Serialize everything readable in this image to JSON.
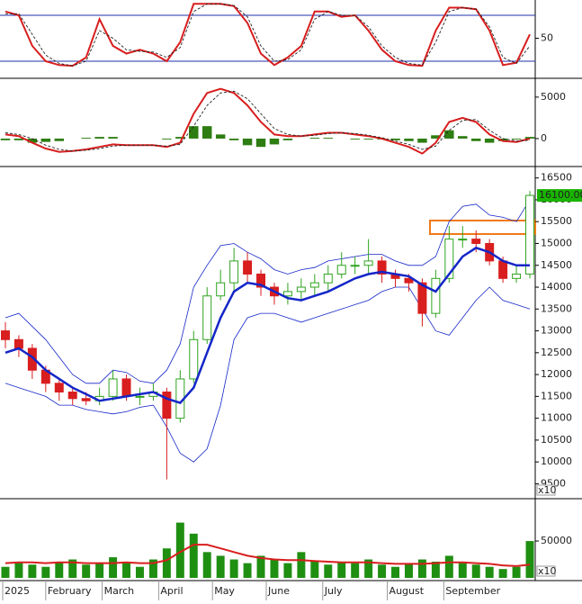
{
  "chart_data": [
    {
      "type": "stochastic",
      "x": [
        0,
        5,
        10,
        15,
        20,
        25,
        30,
        35,
        40,
        45,
        50,
        55,
        60,
        65,
        70,
        75,
        80,
        85,
        90,
        95,
        100,
        105,
        110,
        115,
        120,
        125,
        130,
        135,
        140,
        145,
        150,
        155,
        160,
        165,
        170,
        175,
        180,
        185,
        190,
        195
      ],
      "xlim": [
        -2,
        197
      ],
      "ylim": [
        0,
        100
      ],
      "yticks": [
        50
      ],
      "ref_lines": [
        80,
        20
      ],
      "ref_color": "#1f2fa8",
      "series": [
        {
          "color": "#d81e1e",
          "style": "solid",
          "values": [
            85,
            80,
            40,
            20,
            15,
            14,
            25,
            75,
            40,
            30,
            35,
            30,
            20,
            45,
            95,
            95,
            95,
            92,
            70,
            30,
            15,
            25,
            40,
            85,
            85,
            78,
            80,
            60,
            35,
            20,
            15,
            14,
            60,
            90,
            90,
            88,
            60,
            15,
            18,
            55
          ]
        },
        {
          "color": "#222222",
          "style": "dashed",
          "values": [
            82,
            82,
            55,
            28,
            17,
            14,
            20,
            60,
            50,
            35,
            33,
            32,
            25,
            38,
            85,
            95,
            95,
            93,
            78,
            40,
            20,
            22,
            35,
            75,
            85,
            80,
            80,
            65,
            40,
            25,
            17,
            15,
            45,
            85,
            90,
            88,
            65,
            25,
            17,
            40
          ]
        }
      ]
    },
    {
      "type": "macd",
      "x": [
        0,
        5,
        10,
        15,
        20,
        25,
        30,
        35,
        40,
        45,
        50,
        55,
        60,
        65,
        70,
        75,
        80,
        85,
        90,
        95,
        100,
        105,
        110,
        115,
        120,
        125,
        130,
        135,
        140,
        145,
        150,
        155,
        160,
        165,
        170,
        175,
        180,
        185,
        190,
        195
      ],
      "xlim": [
        -2,
        197
      ],
      "ylim": [
        -3150,
        7050
      ],
      "yticks": [
        0,
        5000
      ],
      "histogram": {
        "color": "#2e7d12",
        "values": [
          -200,
          -200,
          -500,
          -400,
          -300,
          0,
          100,
          200,
          200,
          0,
          0,
          0,
          -100,
          200,
          1500,
          1500,
          500,
          -200,
          -800,
          -1000,
          -700,
          -200,
          0,
          100,
          100,
          0,
          -100,
          -100,
          -100,
          -200,
          -300,
          -500,
          400,
          1000,
          300,
          -300,
          -500,
          -300,
          -100,
          200
        ]
      },
      "series": [
        {
          "color": "#d81e1e",
          "style": "solid",
          "values": [
            500,
            300,
            -500,
            -1200,
            -1600,
            -1500,
            -1300,
            -1000,
            -700,
            -800,
            -800,
            -800,
            -1000,
            -500,
            3000,
            5500,
            6000,
            5500,
            4000,
            2000,
            500,
            300,
            300,
            500,
            700,
            700,
            500,
            300,
            0,
            -500,
            -1000,
            -1800,
            -500,
            2000,
            2500,
            2000,
            500,
            -300,
            -400,
            0
          ]
        },
        {
          "color": "#222222",
          "style": "dashed",
          "values": [
            700,
            500,
            0,
            -800,
            -1300,
            -1500,
            -1400,
            -1200,
            -900,
            -800,
            -800,
            -800,
            -900,
            -700,
            1500,
            4000,
            5500,
            5700,
            4800,
            3000,
            1200,
            500,
            300,
            400,
            600,
            700,
            600,
            400,
            100,
            -300,
            -700,
            -1300,
            -900,
            1000,
            2200,
            2300,
            1000,
            0,
            -300,
            -200
          ]
        }
      ]
    },
    {
      "type": "candlestick",
      "x": [
        0,
        5,
        10,
        15,
        20,
        25,
        30,
        35,
        40,
        45,
        50,
        55,
        60,
        65,
        70,
        75,
        80,
        85,
        90,
        95,
        100,
        105,
        110,
        115,
        120,
        125,
        130,
        135,
        140,
        145,
        150,
        155,
        160,
        165,
        170,
        175,
        180,
        185,
        190,
        195
      ],
      "xlim": [
        -2,
        197
      ],
      "ylim": [
        9200,
        16720
      ],
      "yticks": [
        9500,
        10000,
        10500,
        11000,
        11500,
        12000,
        12500,
        13000,
        13500,
        14000,
        14500,
        15000,
        15500,
        16000,
        16500
      ],
      "up_color": "#2fa31f",
      "down_color": "#d81e1e",
      "open": [
        13000,
        12800,
        12600,
        12100,
        11800,
        11600,
        11450,
        11400,
        11500,
        11900,
        11500,
        11500,
        11600,
        11000,
        11900,
        12800,
        13800,
        14100,
        14600,
        14300,
        14000,
        13800,
        13900,
        14000,
        14100,
        14300,
        14500,
        14500,
        14600,
        14300,
        14200,
        14100,
        13400,
        14200,
        15100,
        15100,
        15000,
        14600,
        14200,
        14300
      ],
      "high": [
        13200,
        12900,
        12700,
        12200,
        11900,
        11700,
        11600,
        11700,
        12100,
        12000,
        11700,
        11800,
        11700,
        12100,
        13000,
        14000,
        14400,
        14900,
        14800,
        14400,
        14100,
        14100,
        14200,
        14300,
        14500,
        14800,
        14700,
        15100,
        14700,
        14400,
        14300,
        14200,
        14400,
        15400,
        15400,
        15300,
        15100,
        14700,
        14500,
        16200
      ],
      "low": [
        12600,
        12400,
        11900,
        11600,
        11400,
        11300,
        11300,
        11300,
        11400,
        11400,
        11300,
        11400,
        9600,
        10900,
        11800,
        12700,
        13700,
        13900,
        14100,
        13800,
        13600,
        13600,
        13700,
        13800,
        13900,
        14200,
        14300,
        14300,
        14100,
        14000,
        13900,
        13100,
        13300,
        14100,
        14900,
        14800,
        14500,
        14100,
        14100,
        14200
      ],
      "close": [
        12800,
        12600,
        12100,
        11800,
        11600,
        11450,
        11400,
        11500,
        11900,
        11500,
        11500,
        11600,
        11000,
        11900,
        12800,
        13800,
        14100,
        14600,
        14300,
        14000,
        13800,
        13900,
        14000,
        14100,
        14300,
        14500,
        14500,
        14600,
        14300,
        14200,
        14100,
        13400,
        14200,
        15100,
        15100,
        15000,
        14600,
        14200,
        14300,
        16100
      ],
      "last_value_label": "16100.00",
      "last_label_color": "#19b400",
      "scale_label": "x10",
      "series": [
        {
          "color": "#1426c8",
          "width": 2.5,
          "values": [
            12500,
            12600,
            12400,
            12100,
            11900,
            11700,
            11550,
            11400,
            11450,
            11500,
            11550,
            11600,
            11450,
            11350,
            11700,
            12500,
            13300,
            13900,
            14100,
            14050,
            13900,
            13750,
            13700,
            13800,
            13900,
            14050,
            14200,
            14300,
            14350,
            14300,
            14250,
            14050,
            13900,
            14300,
            14700,
            14900,
            14800,
            14600,
            14500,
            14500
          ]
        },
        {
          "color": "#1426c8",
          "width": 0.8,
          "values": [
            13300,
            13400,
            13100,
            12800,
            12400,
            12000,
            11800,
            11800,
            12100,
            12050,
            11850,
            11800,
            12100,
            12700,
            14000,
            14500,
            14950,
            15000,
            14800,
            14650,
            14400,
            14300,
            14400,
            14450,
            14600,
            14650,
            14700,
            14750,
            14750,
            14600,
            14500,
            14500,
            14700,
            15500,
            15850,
            15900,
            15650,
            15600,
            15500,
            16000
          ]
        },
        {
          "color": "#1426c8",
          "width": 0.8,
          "values": [
            11800,
            11700,
            11600,
            11500,
            11300,
            11300,
            11200,
            11150,
            11100,
            11150,
            11250,
            11300,
            10800,
            10200,
            10000,
            10300,
            11300,
            12800,
            13300,
            13400,
            13400,
            13300,
            13200,
            13300,
            13400,
            13500,
            13600,
            13700,
            13900,
            14000,
            14000,
            13500,
            13000,
            12900,
            13300,
            13700,
            14000,
            13700,
            13600,
            13500
          ]
        }
      ]
    },
    {
      "type": "volume",
      "x": [
        0,
        5,
        10,
        15,
        20,
        25,
        30,
        35,
        40,
        45,
        50,
        55,
        60,
        65,
        70,
        75,
        80,
        85,
        90,
        95,
        100,
        105,
        110,
        115,
        120,
        125,
        130,
        135,
        140,
        145,
        150,
        155,
        160,
        165,
        170,
        175,
        180,
        185,
        190,
        195
      ],
      "xlim": [
        -2,
        197
      ],
      "ylim": [
        0,
        105000
      ],
      "yticks": [
        50000
      ],
      "xticks": [
        {
          "value": -1,
          "label": "2025"
        },
        {
          "value": 15,
          "label": "February"
        },
        {
          "value": 36,
          "label": "March"
        },
        {
          "value": 57,
          "label": "April"
        },
        {
          "value": 77,
          "label": "May"
        },
        {
          "value": 97,
          "label": "June"
        },
        {
          "value": 118,
          "label": "July"
        },
        {
          "value": 142,
          "label": "August"
        },
        {
          "value": 163,
          "label": "September"
        }
      ],
      "bar_color": "#1f8f12",
      "scale_label": "x10",
      "values": [
        15000,
        20000,
        18000,
        15000,
        22000,
        25000,
        18000,
        20000,
        28000,
        20000,
        15000,
        25000,
        40000,
        75000,
        60000,
        35000,
        30000,
        25000,
        20000,
        30000,
        25000,
        20000,
        35000,
        22000,
        18000,
        22000,
        20000,
        25000,
        18000,
        15000,
        20000,
        25000,
        22000,
        30000,
        20000,
        18000,
        15000,
        12000,
        15000,
        50000
      ],
      "series": [
        {
          "color": "#d81e1e",
          "width": 2,
          "values": [
            20000,
            21000,
            21000,
            20000,
            21000,
            21000,
            20000,
            20000,
            20000,
            21000,
            20000,
            20000,
            24000,
            35000,
            45000,
            45000,
            40000,
            35000,
            30000,
            27000,
            25000,
            24000,
            24000,
            23000,
            22000,
            21000,
            21000,
            21000,
            20000,
            19000,
            19000,
            19000,
            20000,
            21000,
            21000,
            20000,
            19000,
            17000,
            16000,
            18000
          ]
        }
      ]
    }
  ]
}
